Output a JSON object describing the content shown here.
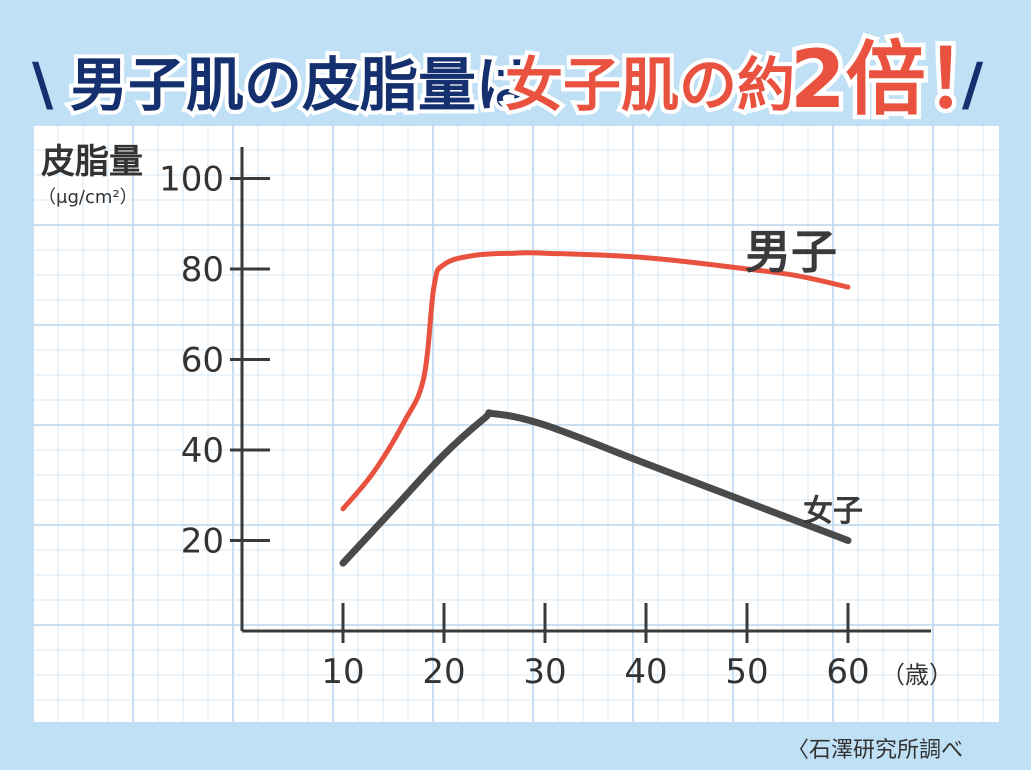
{
  "headline": {
    "slash_left": "\\",
    "part1": "男子肌の皮脂量は",
    "part2": "女子肌の約",
    "part3": "2倍！",
    "slash_right": "/"
  },
  "colors": {
    "background": "#bfe0f5",
    "headline_navy": "#15306e",
    "headline_red": "#e8523f",
    "male_line": "#e8523f",
    "female_line": "#4a4a4a",
    "grid": "#cfe3f3"
  },
  "source": "〈石澤研究所調べ",
  "chart_data": {
    "type": "line",
    "ylabel": "皮脂量",
    "yunit": "（μg/cm²）",
    "xunit": "（歳）",
    "xticks": [
      10,
      20,
      30,
      40,
      50,
      60
    ],
    "yticks": [
      20,
      40,
      60,
      80,
      100
    ],
    "xlim": [
      0,
      69
    ],
    "ylim": [
      0,
      108
    ],
    "series": [
      {
        "name": "男子",
        "color": "#e8523f",
        "x": [
          10,
          13,
          16,
          18,
          19,
          20,
          23,
          27,
          30,
          40,
          50,
          55,
          60
        ],
        "y": [
          27,
          35,
          46,
          56,
          76,
          81,
          83,
          83.5,
          83.5,
          82.5,
          80,
          78.5,
          76
        ]
      },
      {
        "name": "女子",
        "color": "#4a4a4a",
        "x": [
          10,
          15,
          20,
          24,
          25,
          30,
          40,
          50,
          60
        ],
        "y": [
          15,
          27,
          39,
          47,
          48,
          45.5,
          37,
          28.5,
          20
        ]
      }
    ]
  }
}
